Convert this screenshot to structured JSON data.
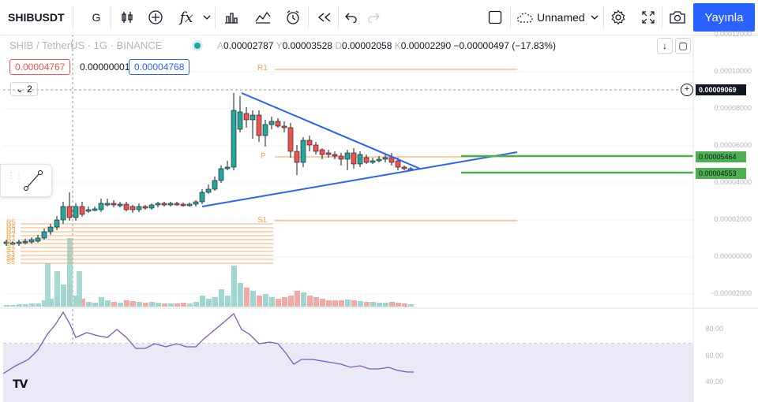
{
  "toolbar": {
    "symbol": "SHIBUSDT",
    "interval": "G",
    "fx_label": "fx",
    "layout_name": "Unnamed",
    "publish_label": "Yayınla"
  },
  "legend": {
    "title": "SHIB / TetherUS · 1G · BINANCE",
    "o_key": "A",
    "o_val": "0.00002787",
    "h_key": "Y",
    "h_val": "0.00003528",
    "l_key": "D",
    "l_val": "0.00002058",
    "c_key": "K",
    "c_val": "0.00002290",
    "change": "−0.00000497 (−17.83%)"
  },
  "price_boxes": {
    "bid": "0.00004767",
    "spread": "0.00000001",
    "ask": "0.00004768"
  },
  "collapse": {
    "count": "2"
  },
  "price_axis": [
    "0.00012000",
    "0.00010000",
    "0.00008000",
    "0.00006000",
    "0.00004000",
    "0.00002000",
    "0.00000000",
    "−0.00002000"
  ],
  "badges": {
    "crosshair": "0.00009069",
    "green_upper": "0.00005464",
    "green_lower": "0.00004553"
  },
  "rsi_axis": [
    "80.00",
    "60.00",
    "40.00"
  ],
  "pivots": {
    "r1": "R1",
    "p": "P",
    "s1": "S1",
    "left_labels": [
      "R5",
      "R4",
      "R3",
      "R2",
      "R1",
      "P",
      "S1",
      "S2",
      "S3",
      "S4",
      "S5"
    ]
  },
  "colors": {
    "up": "#26a69a",
    "down": "#ef5350",
    "trend": "#2962ff",
    "pivot": "#f5a04a",
    "green_line": "#4caf50",
    "rsi": "#7e57c2"
  },
  "logo": "TV"
}
